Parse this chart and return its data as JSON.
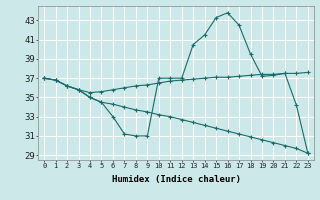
{
  "xlabel": "Humidex (Indice chaleur)",
  "bg_color": "#cce8e8",
  "line_color": "#1a6b6b",
  "grid_color": "#ffffff",
  "ylim": [
    28.5,
    44.5
  ],
  "xlim": [
    -0.5,
    23.5
  ],
  "yticks": [
    29,
    31,
    33,
    35,
    37,
    39,
    41,
    43
  ],
  "xticks": [
    0,
    1,
    2,
    3,
    4,
    5,
    6,
    7,
    8,
    9,
    10,
    11,
    12,
    13,
    14,
    15,
    16,
    17,
    18,
    19,
    20,
    21,
    22,
    23
  ],
  "line1_y": [
    37,
    36.8,
    36.2,
    35.8,
    35.0,
    34.5,
    33.0,
    31.2,
    31.0,
    31.0,
    37.0,
    37.0,
    37.0,
    40.5,
    41.5,
    43.3,
    43.8,
    42.5,
    39.5,
    37.2,
    37.3,
    37.5,
    34.2,
    29.2
  ],
  "line2_y": [
    37,
    36.8,
    36.2,
    35.8,
    35.5,
    35.6,
    35.8,
    36.0,
    36.2,
    36.3,
    36.5,
    36.7,
    36.8,
    36.9,
    37.0,
    37.1,
    37.1,
    37.2,
    37.3,
    37.4,
    37.4,
    37.5,
    37.5,
    37.6
  ],
  "line3_y": [
    37,
    36.8,
    36.2,
    35.8,
    35.0,
    34.5,
    34.3,
    34.0,
    33.7,
    33.5,
    33.2,
    33.0,
    32.7,
    32.4,
    32.1,
    31.8,
    31.5,
    31.2,
    30.9,
    30.6,
    30.3,
    30.0,
    29.7,
    29.2
  ]
}
